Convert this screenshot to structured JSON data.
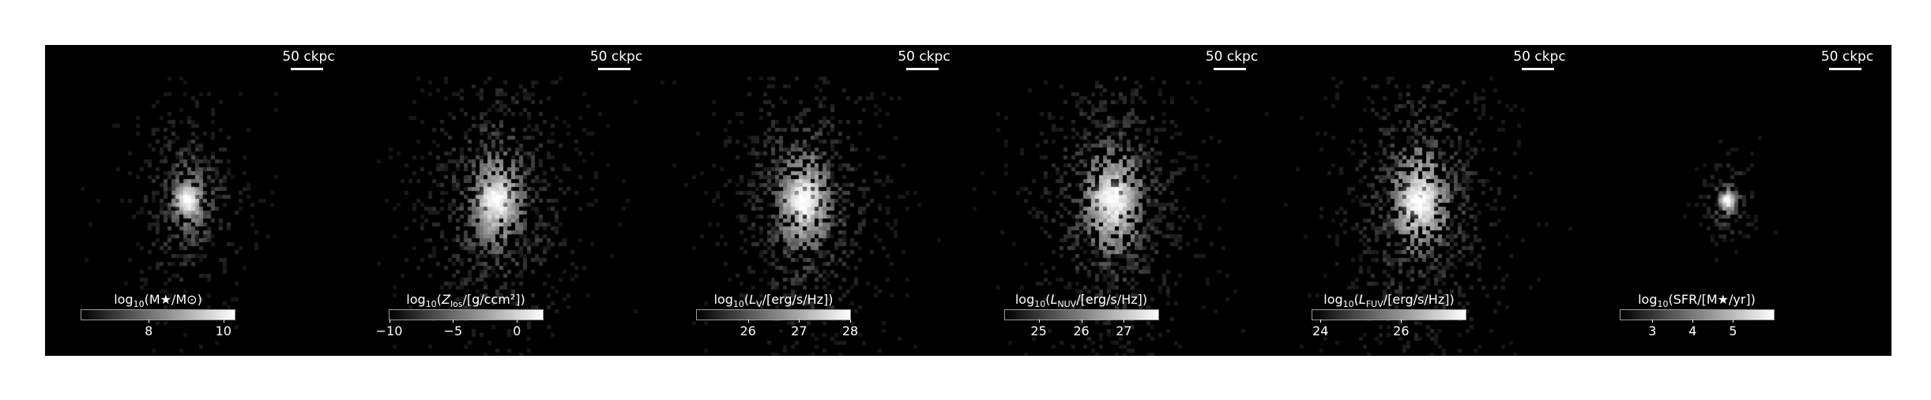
{
  "figure": {
    "scalebar_label": "50 ckpc",
    "panels": [
      {
        "id": "stellar-mass",
        "cbar_prefix": "log",
        "cbar_sub": "10",
        "cbar_body": "(M★/M⊙)",
        "cbar_range": [
          6.2,
          10.3
        ],
        "ticks": [
          {
            "value": 8,
            "label": "8"
          },
          {
            "value": 10,
            "label": "10"
          }
        ],
        "colormap": "gray",
        "spread": 0.7,
        "concentration": 1.3
      },
      {
        "id": "metallicity",
        "cbar_prefix": "log",
        "cbar_sub": "10",
        "cbar_body": "(Z_los/[g/ccm²])",
        "cbar_range": [
          -10,
          2
        ],
        "ticks": [
          {
            "value": -10,
            "label": "−10"
          },
          {
            "value": -5,
            "label": "−5"
          },
          {
            "value": 0,
            "label": "0"
          }
        ],
        "colormap": "gray",
        "spread": 1.0,
        "concentration": 1.0
      },
      {
        "id": "v-band-luminosity",
        "cbar_prefix": "log",
        "cbar_sub": "10",
        "cbar_body": "(L_V/[erg/s/Hz])",
        "cbar_range": [
          25.0,
          28.0
        ],
        "ticks": [
          {
            "value": 26,
            "label": "26"
          },
          {
            "value": 27,
            "label": "27"
          },
          {
            "value": 28,
            "label": "28"
          }
        ],
        "colormap": "gray",
        "spread": 1.0,
        "concentration": 0.9
      },
      {
        "id": "nuv-luminosity",
        "cbar_prefix": "log",
        "cbar_sub": "10",
        "cbar_body": "(L_NUV/[erg/s/Hz])",
        "cbar_range": [
          24.2,
          27.8
        ],
        "ticks": [
          {
            "value": 25,
            "label": "25"
          },
          {
            "value": 26,
            "label": "26"
          },
          {
            "value": 27,
            "label": "27"
          }
        ],
        "colormap": "gray",
        "spread": 1.05,
        "concentration": 0.8
      },
      {
        "id": "fuv-luminosity",
        "cbar_prefix": "log",
        "cbar_sub": "10",
        "cbar_body": "(L_FUV/[erg/s/Hz])",
        "cbar_range": [
          23.8,
          27.6
        ],
        "ticks": [
          {
            "value": 24,
            "label": "24"
          },
          {
            "value": 26,
            "label": "26"
          }
        ],
        "colormap": "gray",
        "spread": 1.05,
        "concentration": 0.8
      },
      {
        "id": "star-formation-rate",
        "cbar_prefix": "log",
        "cbar_sub": "10",
        "cbar_body": "(SFR/[M★/yr])",
        "cbar_range": [
          2.2,
          6.0
        ],
        "ticks": [
          {
            "value": 3,
            "label": "3"
          },
          {
            "value": 4,
            "label": "4"
          },
          {
            "value": 5,
            "label": "5"
          }
        ],
        "colormap": "gray",
        "spread": 0.35,
        "concentration": 1.5
      }
    ]
  }
}
